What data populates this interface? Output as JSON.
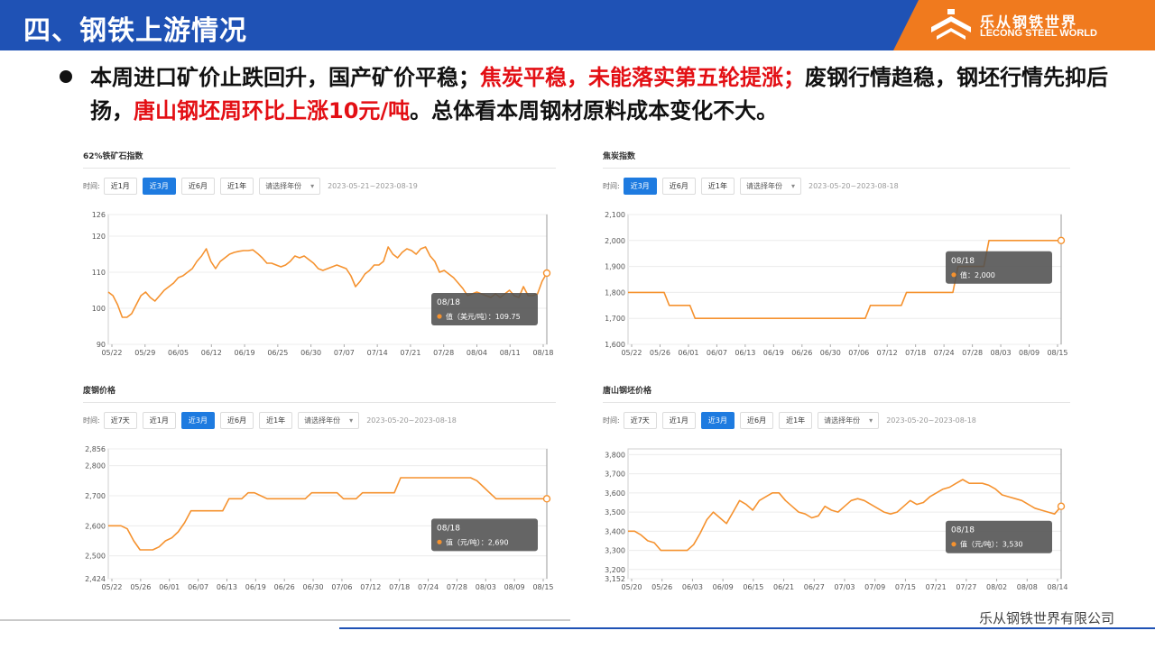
{
  "header": {
    "title": "四、钢铁上游情况",
    "logo_cn": "乐从钢铁世界",
    "logo_en": "LECONG STEEL WORLD"
  },
  "summary": {
    "p1": "本周进口矿价止跌回升，国产矿价平稳；",
    "p2": "焦炭平稳，未能落实第五轮提涨；",
    "p3": "废钢行情趋稳，钢坯行情先抑后扬，",
    "p4": "唐山钢坯周环比上涨10元/吨",
    "p5": "。总体看本周钢材原料成本变化不大。"
  },
  "colors": {
    "line": "#f5922f",
    "active": "#1e7be0",
    "red": "#e30f14",
    "header": "#1f52b5",
    "accent": "#f07a1e"
  },
  "footer": {
    "company": "乐从钢铁世界有限公司"
  },
  "charts": [
    {
      "title": "62%铁矿石指数",
      "time_label": "时间:",
      "buttons": [
        "近1月",
        "近3月",
        "近6月",
        "近1年"
      ],
      "active_index": 1,
      "select_placeholder": "请选择年份",
      "range": "2023-05-21~2023-08-19",
      "tooltip": {
        "date": "08/18",
        "label": "值（美元/吨）：109.75"
      }
    },
    {
      "title": "焦炭指数",
      "time_label": "时间:",
      "buttons": [
        "近3月",
        "近6月",
        "近1年"
      ],
      "active_index": 0,
      "select_placeholder": "请选择年份",
      "range": "2023-05-20~2023-08-18",
      "tooltip": {
        "date": "08/18",
        "label": "值：2,000"
      }
    },
    {
      "title": "废钢价格",
      "time_label": "时间:",
      "buttons": [
        "近7天",
        "近1月",
        "近3月",
        "近6月",
        "近1年"
      ],
      "active_index": 2,
      "select_placeholder": "请选择年份",
      "range": "2023-05-20~2023-08-18",
      "tooltip": {
        "date": "08/18",
        "label": "值（元/吨）：2,690"
      }
    },
    {
      "title": "唐山钢坯价格",
      "time_label": "时间:",
      "buttons": [
        "近7天",
        "近1月",
        "近3月",
        "近6月",
        "近1年"
      ],
      "active_index": 2,
      "select_placeholder": "请选择年份",
      "range": "2023-05-20~2023-08-18",
      "tooltip": {
        "date": "08/18",
        "label": "值（元/吨）：3,530"
      }
    }
  ],
  "chart_data": [
    {
      "type": "line",
      "title": "62%铁矿石指数",
      "ylim": [
        90,
        126
      ],
      "yticks": [
        "90",
        "100",
        "110",
        "120",
        "126"
      ],
      "ytick_values": [
        90,
        100,
        110,
        120,
        126
      ],
      "xticks": [
        "05/22",
        "05/29",
        "06/05",
        "06/12",
        "06/19",
        "06/25",
        "06/30",
        "07/07",
        "07/14",
        "07/21",
        "07/28",
        "08/04",
        "08/11",
        "08/18"
      ],
      "values": [
        104.5,
        103.5,
        101,
        97.5,
        97.5,
        98.5,
        101,
        103.5,
        104.5,
        103,
        102,
        103.5,
        105,
        106,
        107,
        108.5,
        109,
        110,
        111,
        113,
        114.5,
        116.5,
        113,
        111,
        113,
        114,
        115,
        115.5,
        115.8,
        116,
        116,
        116.2,
        115.2,
        114,
        112.5,
        112.5,
        112,
        111.5,
        112,
        113,
        114.5,
        114,
        114.5,
        113.5,
        112.5,
        111,
        110.5,
        111,
        111.5,
        112,
        111.5,
        111,
        109,
        106,
        107.5,
        109.5,
        110.5,
        112,
        112,
        113,
        117,
        115,
        114,
        115.5,
        116.5,
        116,
        115,
        116.5,
        117,
        114.5,
        113,
        110,
        110.5,
        109.5,
        108.5,
        107,
        105.5,
        103.5,
        104,
        104.5,
        104,
        103.5,
        103,
        104,
        103,
        104,
        105,
        103.5,
        103,
        106,
        103.5,
        103.5,
        104,
        107.5,
        109.75
      ],
      "grid": true
    },
    {
      "type": "line",
      "title": "焦炭指数",
      "ylim": [
        1600,
        2100
      ],
      "yticks": [
        "1,600",
        "1,700",
        "1,800",
        "1,900",
        "2,000",
        "2,100"
      ],
      "ytick_values": [
        1600,
        1700,
        1800,
        1900,
        2000,
        2100
      ],
      "xticks": [
        "05/22",
        "05/26",
        "06/01",
        "06/07",
        "06/13",
        "06/19",
        "06/26",
        "06/30",
        "07/06",
        "07/12",
        "07/18",
        "07/24",
        "07/28",
        "08/03",
        "08/09",
        "08/15"
      ],
      "values": [
        1800,
        1800,
        1800,
        1800,
        1800,
        1800,
        1800,
        1800,
        1750,
        1750,
        1750,
        1750,
        1750,
        1700,
        1700,
        1700,
        1700,
        1700,
        1700,
        1700,
        1700,
        1700,
        1700,
        1700,
        1700,
        1700,
        1700,
        1700,
        1700,
        1700,
        1700,
        1700,
        1700,
        1700,
        1700,
        1700,
        1700,
        1700,
        1700,
        1700,
        1700,
        1700,
        1700,
        1700,
        1700,
        1700,
        1700,
        1750,
        1750,
        1750,
        1750,
        1750,
        1750,
        1750,
        1800,
        1800,
        1800,
        1800,
        1800,
        1800,
        1800,
        1800,
        1800,
        1800,
        1900,
        1900,
        1900,
        1900,
        1900,
        1900,
        2000,
        2000,
        2000,
        2000,
        2000,
        2000,
        2000,
        2000,
        2000,
        2000,
        2000,
        2000,
        2000,
        2000,
        2000
      ],
      "grid": true
    },
    {
      "type": "line",
      "title": "废钢价格",
      "ylim": [
        2424,
        2856
      ],
      "yticks": [
        "2,424",
        "2,500",
        "2,600",
        "2,700",
        "2,800",
        "2,856"
      ],
      "ytick_values": [
        2424,
        2500,
        2600,
        2700,
        2800,
        2856
      ],
      "xticks": [
        "05/22",
        "05/26",
        "06/01",
        "06/07",
        "06/13",
        "06/19",
        "06/26",
        "06/30",
        "07/06",
        "07/12",
        "07/18",
        "07/24",
        "07/28",
        "08/03",
        "08/09",
        "08/15"
      ],
      "values": [
        2600,
        2600,
        2600,
        2590,
        2550,
        2520,
        2520,
        2520,
        2530,
        2550,
        2560,
        2580,
        2610,
        2650,
        2650,
        2650,
        2650,
        2650,
        2650,
        2690,
        2690,
        2690,
        2710,
        2710,
        2700,
        2690,
        2690,
        2690,
        2690,
        2690,
        2690,
        2690,
        2710,
        2710,
        2710,
        2710,
        2710,
        2690,
        2690,
        2690,
        2710,
        2710,
        2710,
        2710,
        2710,
        2710,
        2760,
        2760,
        2760,
        2760,
        2760,
        2760,
        2760,
        2760,
        2760,
        2760,
        2760,
        2760,
        2750,
        2730,
        2710,
        2690,
        2690,
        2690,
        2690,
        2690,
        2690,
        2690,
        2690,
        2690
      ],
      "grid": true
    },
    {
      "type": "line",
      "title": "唐山钢坯价格",
      "ylim": [
        3152,
        3830
      ],
      "yticks": [
        "3,152",
        "3,200",
        "3,300",
        "3,400",
        "3,500",
        "3,600",
        "3,700",
        "3,800"
      ],
      "ytick_values": [
        3152,
        3200,
        3300,
        3400,
        3500,
        3600,
        3700,
        3800
      ],
      "xticks": [
        "05/20",
        "05/26",
        "06/03",
        "06/09",
        "06/15",
        "06/21",
        "06/27",
        "07/03",
        "07/09",
        "07/15",
        "07/21",
        "07/27",
        "08/02",
        "08/08",
        "08/14"
      ],
      "values": [
        3400,
        3400,
        3380,
        3350,
        3340,
        3300,
        3300,
        3300,
        3300,
        3300,
        3330,
        3390,
        3460,
        3500,
        3470,
        3440,
        3500,
        3560,
        3540,
        3510,
        3560,
        3580,
        3600,
        3600,
        3560,
        3530,
        3500,
        3490,
        3470,
        3480,
        3530,
        3510,
        3500,
        3530,
        3560,
        3570,
        3560,
        3540,
        3520,
        3500,
        3490,
        3500,
        3530,
        3560,
        3540,
        3550,
        3580,
        3600,
        3620,
        3630,
        3650,
        3670,
        3650,
        3650,
        3650,
        3640,
        3620,
        3590,
        3580,
        3570,
        3560,
        3540,
        3520,
        3510,
        3500,
        3490,
        3530
      ],
      "grid": true
    }
  ]
}
